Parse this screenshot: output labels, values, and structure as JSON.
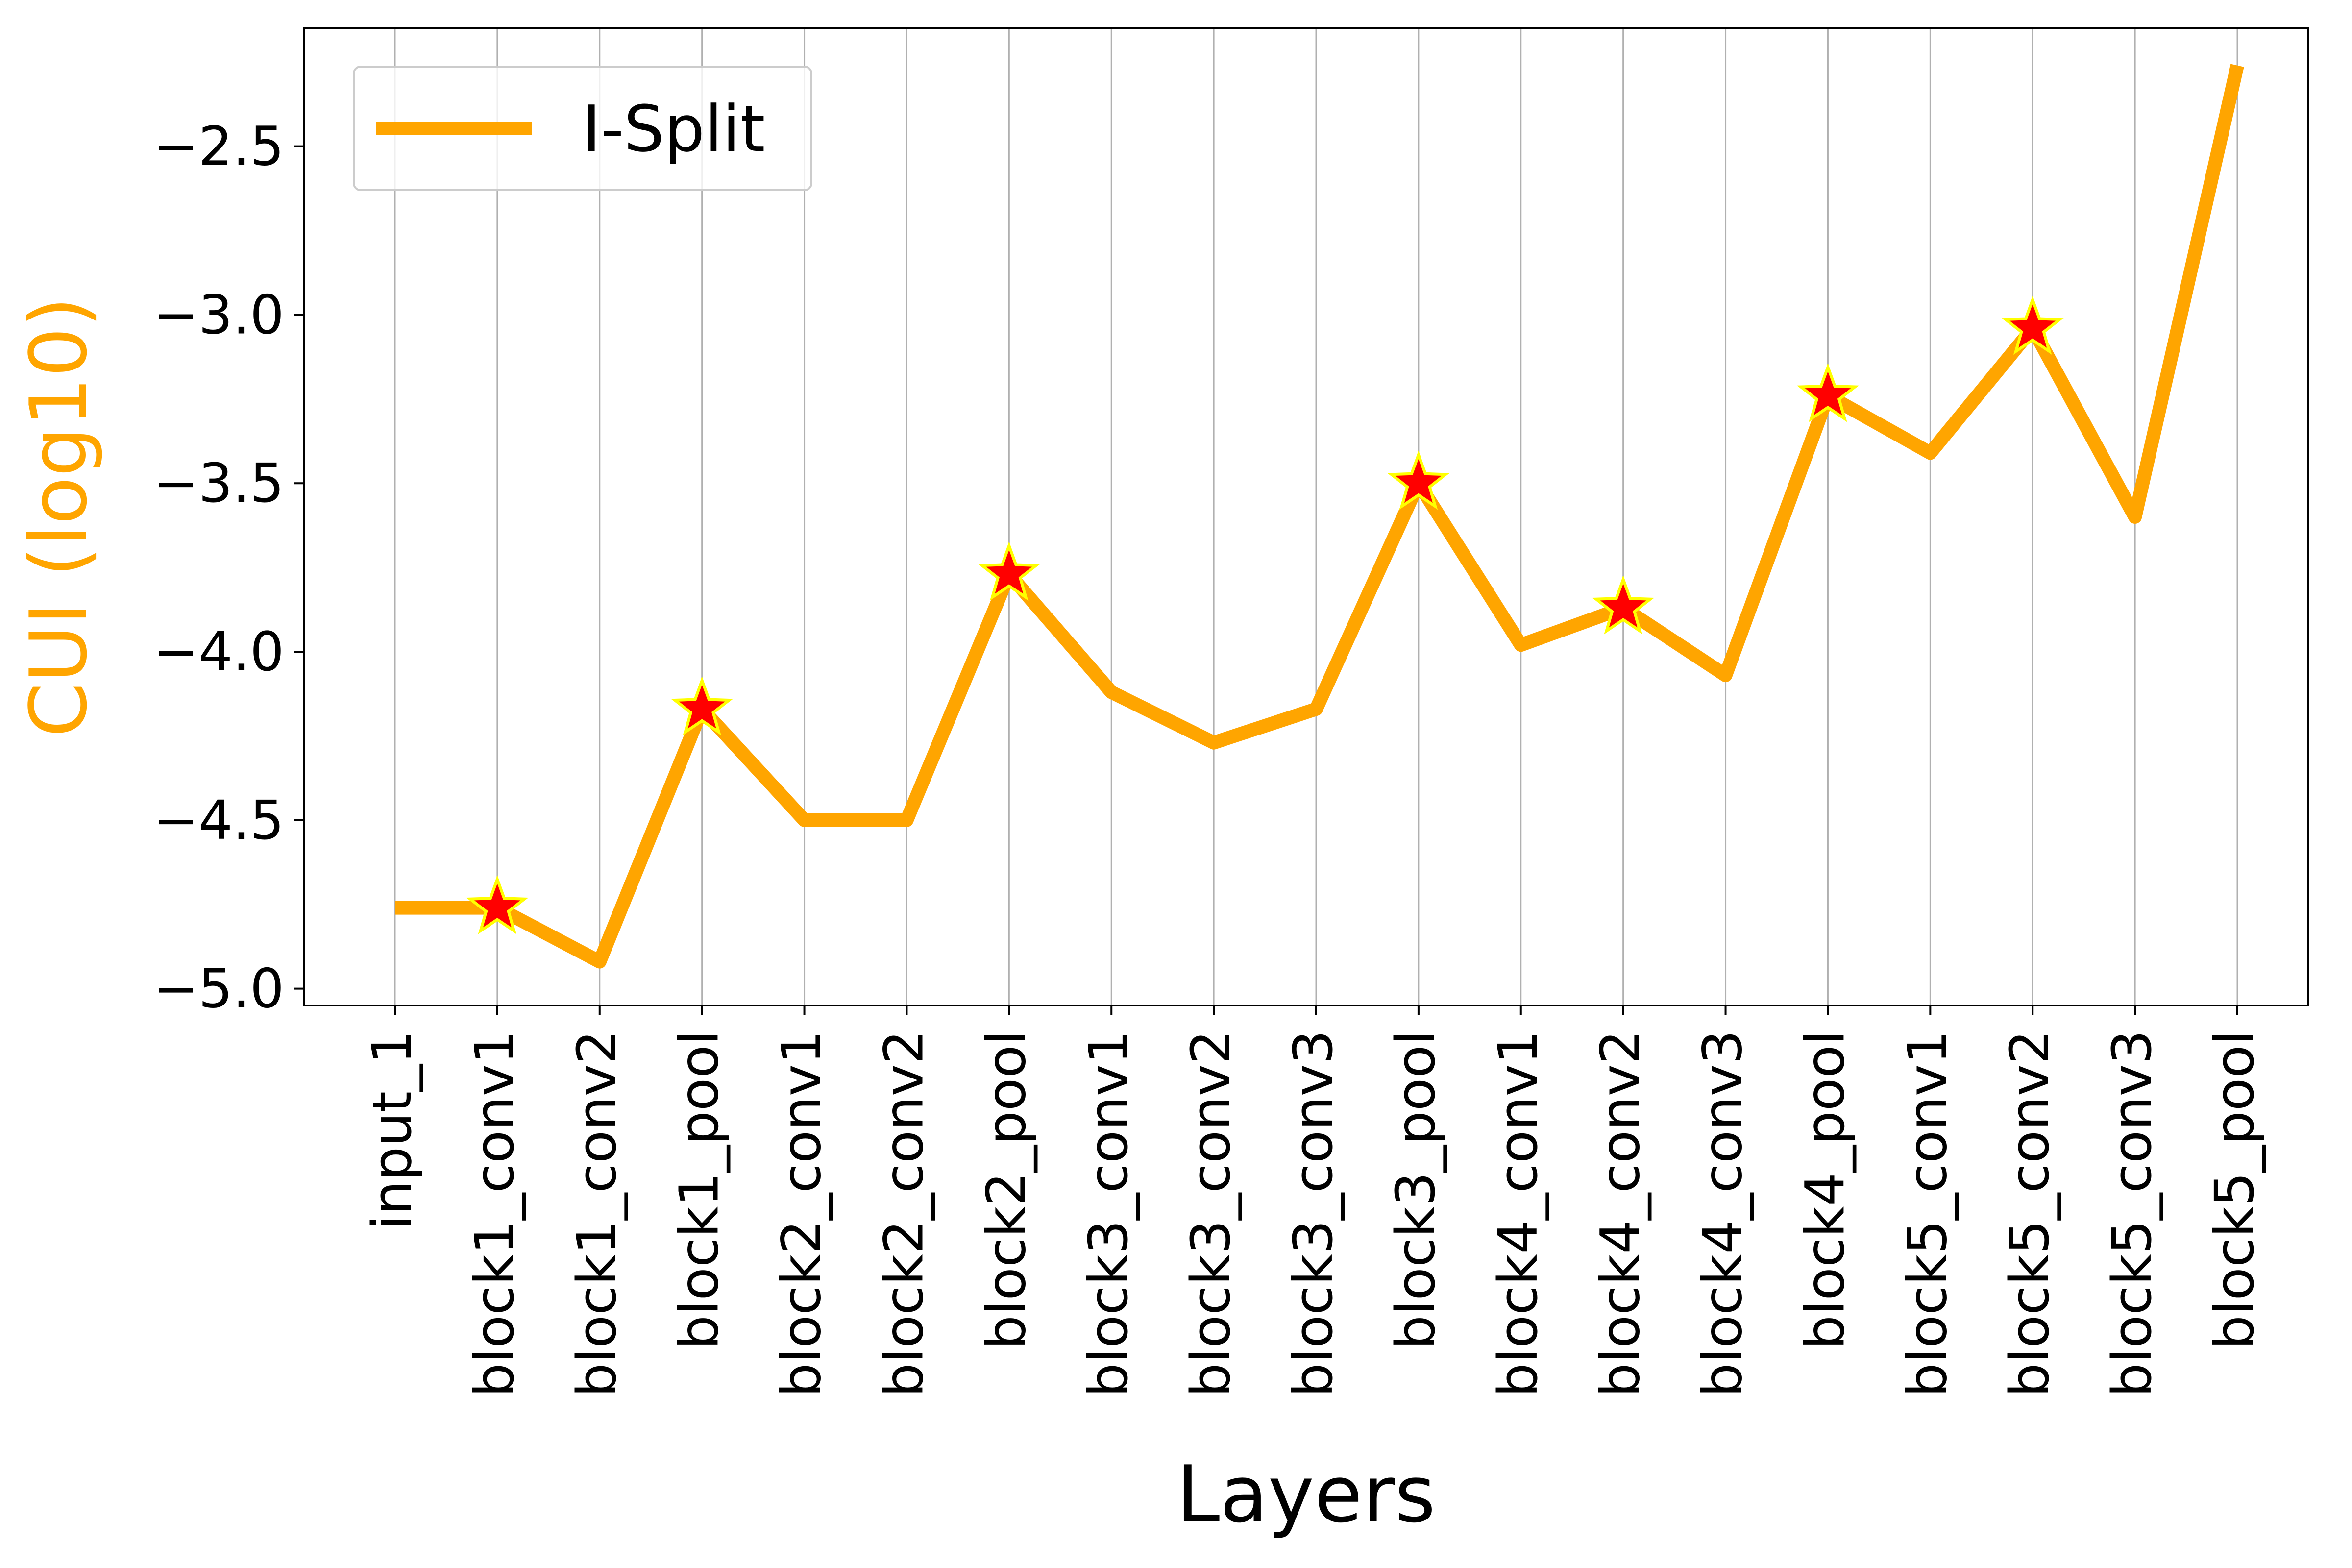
{
  "chart_data": {
    "type": "line",
    "categories": [
      "input_1",
      "block1_conv1",
      "block1_conv2",
      "block1_pool",
      "block2_conv1",
      "block2_conv2",
      "block2_pool",
      "block3_conv1",
      "block3_conv2",
      "block3_conv3",
      "block3_pool",
      "block4_conv1",
      "block4_conv2",
      "block4_conv3",
      "block4_pool",
      "block5_conv1",
      "block5_conv2",
      "block5_conv3",
      "block5_pool"
    ],
    "series": [
      {
        "name": "I-Split",
        "color": "#FFA500",
        "values": [
          -4.76,
          -4.76,
          -4.92,
          -4.17,
          -4.5,
          -4.5,
          -3.77,
          -4.12,
          -4.27,
          -4.17,
          -3.5,
          -3.98,
          -3.87,
          -4.07,
          -3.24,
          -3.41,
          -3.04,
          -3.6,
          -2.26
        ]
      }
    ],
    "marked_categories": [
      "block1_conv1",
      "block1_pool",
      "block2_pool",
      "block3_pool",
      "block4_conv2",
      "block4_pool",
      "block5_conv2"
    ],
    "marker": {
      "shape": "star",
      "fill": "#FF0000",
      "edge": "#FFFF00"
    },
    "xlabel": "Layers",
    "ylabel": "CUI (log10)",
    "ylabel_color": "#FFA500",
    "ylim": [
      -5.05,
      -2.15
    ],
    "yticks": [
      -2.5,
      -3.0,
      -3.5,
      -4.0,
      -4.5,
      -5.0
    ],
    "ytick_labels": [
      "−2.5",
      "−3.0",
      "−3.5",
      "−4.0",
      "−4.5",
      "−5.0"
    ],
    "grid": "vertical",
    "legend": "top-left"
  }
}
